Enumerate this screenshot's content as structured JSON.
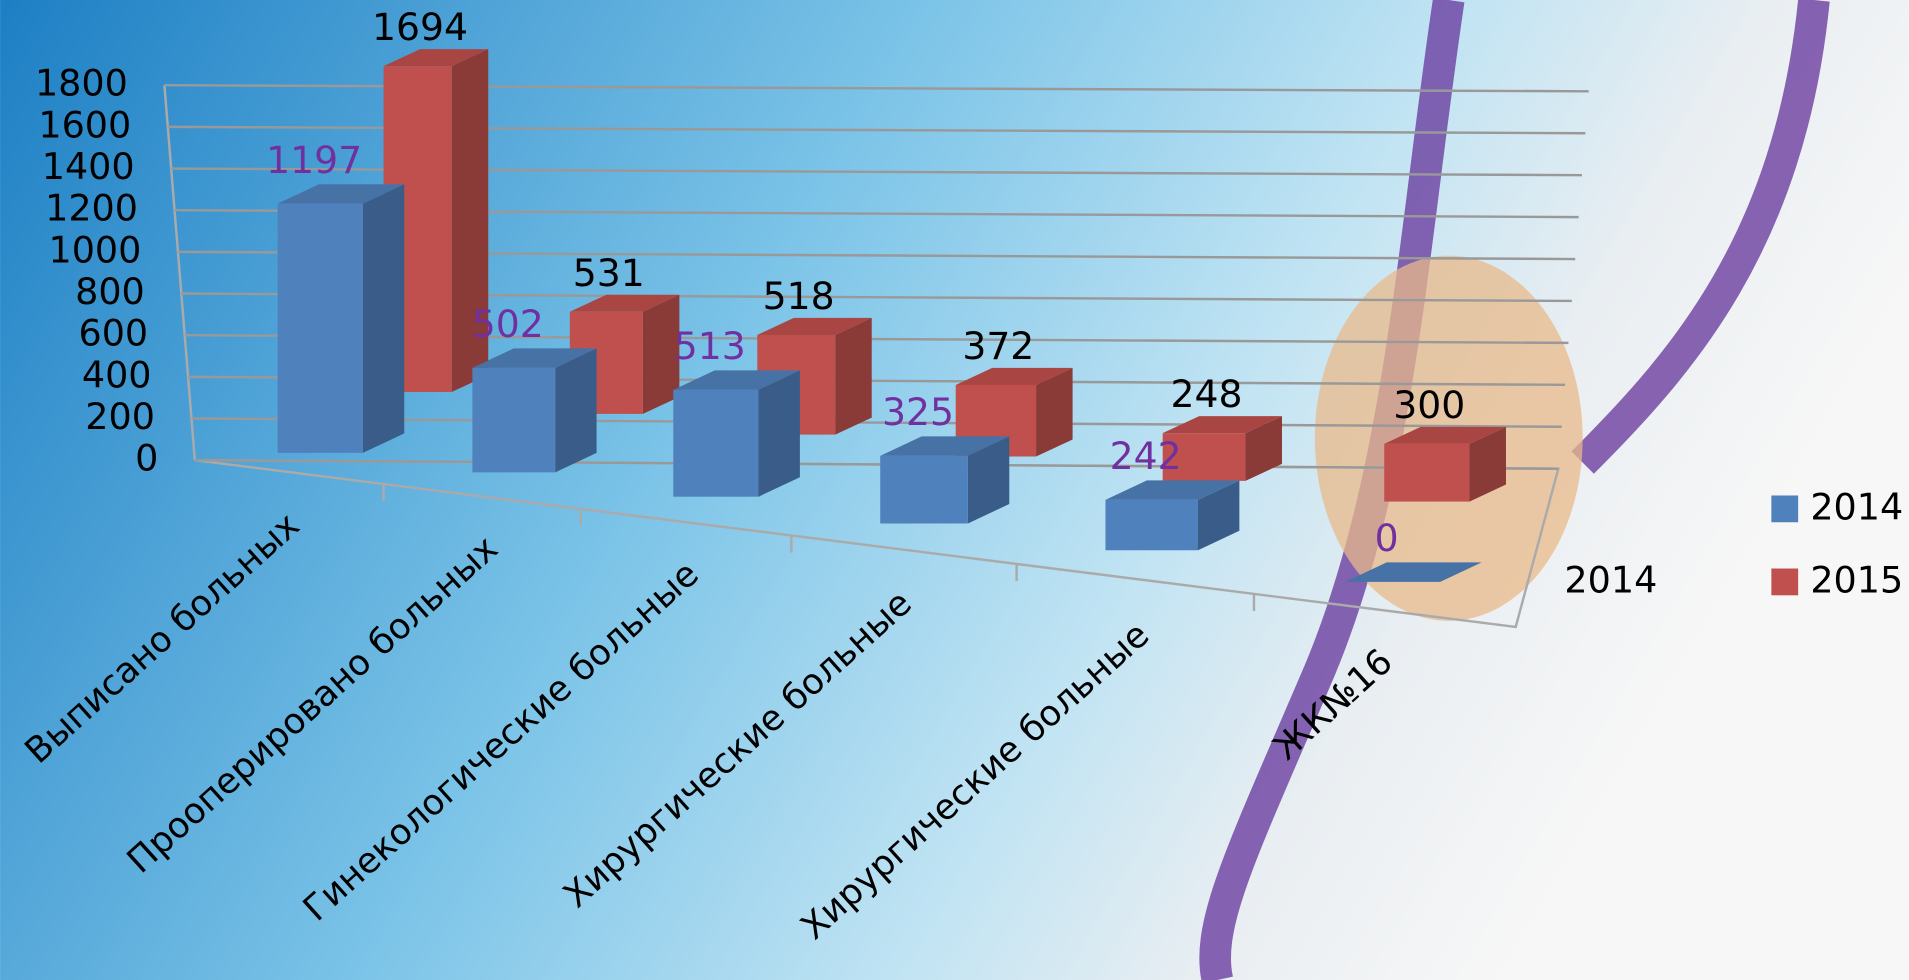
{
  "chart_data": {
    "type": "bar",
    "categories": [
      "Выписано больных",
      "Прооперировано больных",
      "Гинекологические больные",
      "Хирургические больные",
      "Хирургические больные",
      "ЖК№16"
    ],
    "series": [
      {
        "name": "2014",
        "color": "#4f81bd",
        "values": [
          1197,
          502,
          513,
          325,
          242,
          0
        ]
      },
      {
        "name": "2015",
        "color": "#c0504d",
        "values": [
          1694,
          531,
          518,
          372,
          248,
          300
        ]
      }
    ],
    "depth_labels": [
      "2014"
    ],
    "ylim": [
      0,
      1800
    ],
    "yticks": [
      0,
      200,
      400,
      600,
      800,
      1000,
      1200,
      1400,
      1600,
      1800
    ],
    "grid": true,
    "legend": "right"
  }
}
